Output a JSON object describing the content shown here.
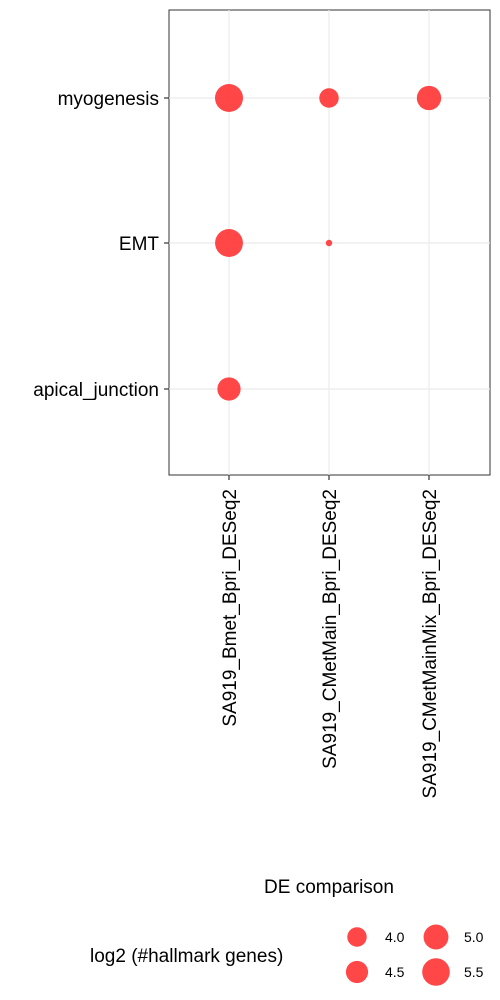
{
  "chart_data": {
    "type": "scatter",
    "title": "",
    "xlabel": "DE comparison",
    "ylabel": "",
    "x_categories": [
      "SA919_Bmet_Bpri_DESeq2",
      "SA919_CMetMain_Bpri_DESeq2",
      "SA919_CMetMainMix_Bpri_DESeq2"
    ],
    "y_categories": [
      "apical_junction",
      "EMT",
      "myogenesis"
    ],
    "points": [
      {
        "x": "SA919_Bmet_Bpri_DESeq2",
        "y": "myogenesis",
        "size": 5.6
      },
      {
        "x": "SA919_CMetMain_Bpri_DESeq2",
        "y": "myogenesis",
        "size": 4.0
      },
      {
        "x": "SA919_CMetMainMix_Bpri_DESeq2",
        "y": "myogenesis",
        "size": 4.9
      },
      {
        "x": "SA919_Bmet_Bpri_DESeq2",
        "y": "EMT",
        "size": 5.55
      },
      {
        "x": "SA919_CMetMain_Bpri_DESeq2",
        "y": "EMT",
        "size": 1.6
      },
      {
        "x": "SA919_Bmet_Bpri_DESeq2",
        "y": "apical_junction",
        "size": 4.7
      }
    ],
    "point_color": "#ff3333",
    "grid": true,
    "legend": {
      "title": "log2 (#hallmark genes)",
      "placement": "bottom",
      "entries": [
        {
          "label": "4.0",
          "value": 4.0
        },
        {
          "label": "4.5",
          "value": 4.5
        },
        {
          "label": "5.0",
          "value": 5.0
        },
        {
          "label": "5.5",
          "value": 5.5
        }
      ]
    }
  }
}
